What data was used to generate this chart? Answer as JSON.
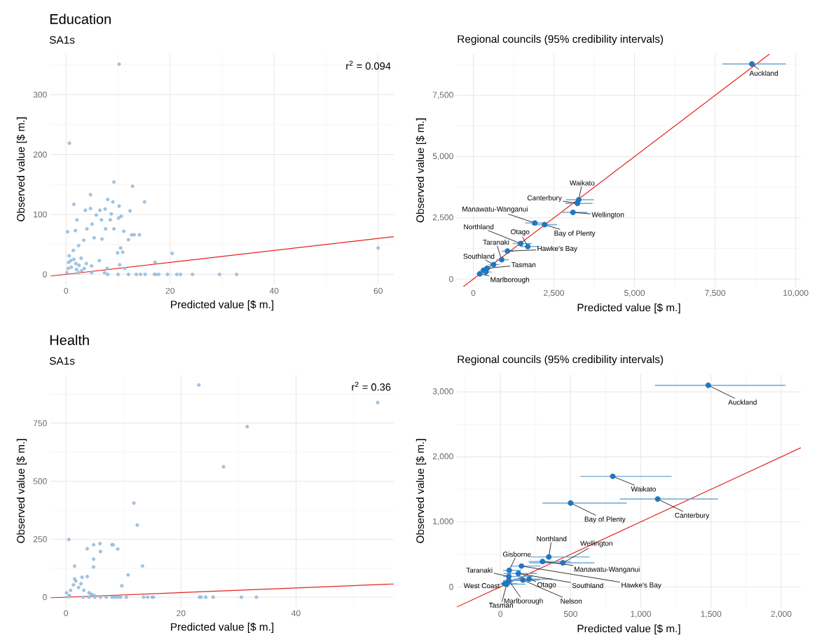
{
  "chart_data": [
    {
      "type": "scatter",
      "title": "Education",
      "subtitle": "SA1s",
      "xlabel": "Predicted value [$ m.]",
      "ylabel": "Observed value [$ m.]",
      "xlim": [
        -3,
        63
      ],
      "ylim": [
        -17,
        368
      ],
      "xticks": [
        0,
        20,
        40,
        60
      ],
      "yticks": [
        0,
        100,
        200,
        300
      ],
      "grid": true,
      "annotations": [
        "r$^{2}$ = 0.094"
      ],
      "series": [
        {
          "type": "scatter",
          "marker": "circle",
          "color": "#9ec5e6",
          "x": [
            10.2,
            0.65,
            9.2,
            12.8,
            4.7,
            15.1,
            1.5,
            9.0,
            8.0,
            10.2,
            4.7,
            3.7,
            6.5,
            7.5,
            12.3,
            8.7,
            5.8,
            2.1,
            6.8,
            8.5,
            10.1,
            10.6,
            5.0,
            4.0,
            7.6,
            9.2,
            0.3,
            1.8,
            11.1,
            12.6,
            13.1,
            14.1,
            12.0,
            20.4,
            60.0,
            17.1,
            10.5,
            10.9,
            9.9,
            5.4,
            6.9,
            3.4,
            2.4,
            1.4,
            0.6,
            0.9,
            1.9,
            2.9,
            3.9,
            4.9,
            6.4,
            7.9,
            0.4,
            0.15,
            2.4,
            4.9,
            7.4,
            10.3,
            11.3,
            8,
            10,
            12,
            13.5,
            14.3,
            15.2,
            17,
            17.2,
            17.8,
            19.5,
            21.3,
            22,
            24.3,
            29.5,
            32.8,
            1.0,
            2.0,
            3.0,
            0.5,
            1.5,
            2.5,
            3.5
          ],
          "values": [
            351,
            219,
            154,
            147,
            133,
            121,
            117,
            121,
            125,
            114,
            110,
            107,
            107,
            109,
            106,
            101,
            99,
            91,
            91,
            91,
            94,
            97,
            84,
            76,
            76,
            76,
            71,
            73,
            72,
            66,
            66,
            66,
            58,
            35,
            44,
            20,
            44,
            37,
            36,
            61,
            59,
            57,
            48,
            40,
            31,
            23,
            18,
            27,
            18,
            14,
            23,
            10,
            10,
            3,
            3,
            3,
            3,
            16,
            10,
            0,
            0,
            0,
            0,
            0,
            0,
            0,
            0,
            0,
            0,
            0,
            0,
            0,
            0,
            0,
            12,
            8,
            6,
            20,
            25,
            15,
            10
          ]
        },
        {
          "type": "line",
          "marker": "none",
          "color": "#e3221c",
          "x": [
            -3,
            63
          ],
          "values": [
            -3,
            63
          ]
        }
      ]
    },
    {
      "type": "scatter",
      "title": "Regional councils (95% credibility intervals)",
      "xlabel": "Predicted value [$ m.]",
      "ylabel": "Observed value [$ m.]",
      "xlim": [
        -510,
        10160
      ],
      "ylim": [
        -310,
        9190
      ],
      "xticks": [
        0,
        {
          "value": 2500,
          "label": "2,500"
        },
        {
          "value": 5000,
          "label": "5,000"
        },
        {
          "value": 7500,
          "label": "7,500"
        },
        {
          "value": 10000,
          "label": "10,000"
        }
      ],
      "yticks": [
        0,
        {
          "value": 2500,
          "label": "2,500"
        },
        {
          "value": 5000,
          "label": "5,000"
        },
        {
          "value": 7500,
          "label": "7,500"
        }
      ],
      "grid": true,
      "annotations": [
        {
          "text": "Auckland",
          "x": 8640,
          "y": 8780
        },
        {
          "text": "Waikato",
          "x": 3270,
          "y": 3240
        },
        {
          "text": "Canterbury",
          "x": 3230,
          "y": 3090
        },
        {
          "text": "Wellington",
          "x": 3090,
          "y": 2720
        },
        {
          "text": "Manawatu-Wanganui",
          "x": 1910,
          "y": 2290
        },
        {
          "text": "Bay of Plenty",
          "x": 2210,
          "y": 2220
        },
        {
          "text": "Northland",
          "x": 1470,
          "y": 1450
        },
        {
          "text": "Otago",
          "x": 1690,
          "y": 1330
        },
        {
          "text": "Hawke's Bay",
          "x": 1060,
          "y": 1140
        },
        {
          "text": "Taranaki",
          "x": 880,
          "y": 790
        },
        {
          "text": "Southland",
          "x": 630,
          "y": 590
        },
        {
          "text": "Tasman",
          "x": 430,
          "y": 440
        },
        {
          "text": "Marlborough",
          "x": 200,
          "y": 210
        }
      ],
      "series": [
        {
          "type": "line",
          "marker": "none",
          "color": "#e3221c",
          "x": [
            -310,
            9190
          ],
          "values": [
            -310,
            9190
          ]
        },
        {
          "type": "scatter",
          "marker": "circle",
          "color": "#1f78c1",
          "x": [
            8640,
            3270,
            3230,
            3090,
            1910,
            2210,
            1470,
            1690,
            1060,
            880,
            630,
            430,
            200,
            320,
            390
          ],
          "values": [
            8780,
            3240,
            3090,
            2720,
            2290,
            2220,
            1450,
            1330,
            1140,
            790,
            590,
            440,
            210,
            360,
            290
          ],
          "xerrors": [
            [
              7720,
              9690
            ],
            [
              2870,
              3740
            ],
            [
              2850,
              3700
            ],
            [
              2760,
              3540
            ],
            [
              1610,
              2280
            ],
            [
              1810,
              2600
            ],
            [
              1220,
              1810
            ],
            [
              1460,
              2050
            ],
            [
              880,
              1260
            ],
            [
              710,
              1100
            ],
            [
              480,
              820
            ],
            [
              300,
              560
            ],
            [
              100,
              300
            ],
            [
              200,
              450
            ],
            [
              250,
              560
            ]
          ]
        }
      ]
    },
    {
      "type": "scatter",
      "title": "Health",
      "subtitle": "SA1s",
      "xlabel": "Predicted value [$ m.]",
      "ylabel": "Observed value [$ m.]",
      "xlim": [
        -2.7,
        57
      ],
      "ylim": [
        -42,
        958
      ],
      "xticks": [
        0,
        20,
        40
      ],
      "yticks": [
        0,
        250,
        500,
        750
      ],
      "grid": true,
      "annotations": [
        "r$^{2}$ = 0.36"
      ],
      "series": [
        {
          "type": "scatter",
          "marker": "circle",
          "color": "#9ec5e6",
          "x": [
            23.1,
            54.2,
            31.5,
            27.4,
            11.8,
            12.4,
            0.5,
            4.8,
            5.9,
            8.0,
            8.2,
            3.7,
            6.0,
            9.0,
            4.8,
            4.8,
            1.5,
            13.3,
            10.8,
            9.7,
            3.7,
            1.5,
            2.8,
            13.5,
            14.2,
            15.0,
            15.2,
            23.2,
            23.5,
            24.3,
            25.6,
            30.5,
            33.1,
            0.1,
            0.8,
            1.3,
            2.2,
            1.7,
            2.6,
            3.1,
            4.0,
            4.4,
            4.9,
            0.6,
            0.4,
            3,
            4,
            5,
            6,
            7,
            8,
            8.5,
            9,
            9.5,
            10.5
          ],
          "values": [
            915,
            839,
            735,
            562,
            406,
            311,
            249,
            226,
            231,
            226,
            226,
            209,
            197,
            208,
            164,
            130,
            134,
            135,
            96,
            49,
            89,
            79,
            86,
            0,
            0,
            0,
            0,
            0,
            0,
            0,
            0,
            0,
            0,
            19,
            30,
            53,
            42,
            70,
            58,
            30,
            19,
            13,
            8,
            8,
            2,
            0,
            0,
            0,
            0,
            0,
            0,
            0,
            0,
            0,
            0
          ]
        },
        {
          "type": "line",
          "marker": "none",
          "color": "#e3221c",
          "x": [
            -2.7,
            57
          ],
          "values": [
            -2.7,
            57
          ]
        }
      ]
    },
    {
      "type": "scatter",
      "title": "Regional councils (95% credibility intervals)",
      "xlabel": "Predicted value [$ m.]",
      "ylabel": "Observed value [$ m.]",
      "xlim": [
        -310,
        2140
      ],
      "ylim": [
        -320,
        3270
      ],
      "xticks": [
        0,
        500,
        {
          "value": 1000,
          "label": "1,000"
        },
        {
          "value": 1500,
          "label": "1,500"
        },
        {
          "value": 2000,
          "label": "2,000"
        }
      ],
      "yticks": [
        0,
        {
          "value": 1000,
          "label": "1,000"
        },
        {
          "value": 2000,
          "label": "2,000"
        },
        {
          "value": 3000,
          "label": "3,000"
        }
      ],
      "grid": true,
      "annotations": [
        {
          "text": "Auckland",
          "x": 1480,
          "y": 3100
        },
        {
          "text": "Waikato",
          "x": 800,
          "y": 1700
        },
        {
          "text": "Canterbury",
          "x": 1120,
          "y": 1350
        },
        {
          "text": "Bay of Plenty",
          "x": 500,
          "y": 1290
        },
        {
          "text": "Northland",
          "x": 345,
          "y": 460
        },
        {
          "text": "Wellington",
          "x": 445,
          "y": 370
        },
        {
          "text": "Manawatu-Wanganui",
          "x": 300,
          "y": 390
        },
        {
          "text": "Gisborne",
          "x": 63,
          "y": 254
        },
        {
          "text": "Hawke's Bay",
          "x": 150,
          "y": 320
        },
        {
          "text": "Southland",
          "x": 128,
          "y": 205
        },
        {
          "text": "Otago",
          "x": 205,
          "y": 120
        },
        {
          "text": "Taranaki",
          "x": 60,
          "y": 160
        },
        {
          "text": "Nelson",
          "x": 160,
          "y": 105
        },
        {
          "text": "West Coast",
          "x": 32,
          "y": 50
        },
        {
          "text": "Tasman",
          "x": 45,
          "y": 40
        },
        {
          "text": "Marlborough",
          "x": 60,
          "y": 98
        }
      ],
      "series": [
        {
          "type": "line",
          "marker": "none",
          "color": "#e3221c",
          "x": [
            -310,
            2140
          ],
          "values": [
            -310,
            2140
          ]
        },
        {
          "type": "scatter",
          "marker": "circle",
          "color": "#1f78c1",
          "x": [
            1480,
            800,
            1120,
            500,
            345,
            445,
            300,
            63,
            150,
            128,
            205,
            60,
            160,
            32,
            45,
            60
          ],
          "values": [
            3100,
            1700,
            1350,
            1290,
            460,
            370,
            390,
            254,
            320,
            205,
            120,
            160,
            105,
            50,
            40,
            98
          ],
          "xerrors": [
            [
              1100,
              2030
            ],
            [
              570,
              1220
            ],
            [
              850,
              1550
            ],
            [
              300,
              900
            ],
            [
              215,
              635
            ],
            [
              205,
              670
            ],
            [
              200,
              500
            ],
            [
              20,
              150
            ],
            [
              75,
              285
            ],
            [
              25,
              260
            ],
            [
              95,
              370
            ],
            [
              20,
              230
            ],
            [
              60,
              280
            ],
            [
              5,
              120
            ],
            [
              10,
              180
            ],
            [
              20,
              200
            ]
          ]
        }
      ]
    }
  ]
}
